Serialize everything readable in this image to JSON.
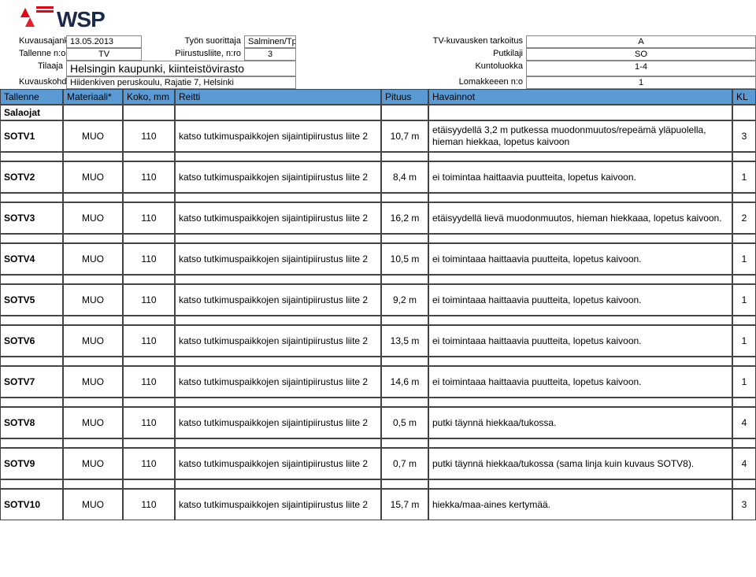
{
  "brand": {
    "name": "WSP",
    "logo_red": "#e30613",
    "logo_text_color": "#1a2a4a"
  },
  "meta": {
    "r1": {
      "l1": "Kuvausajank.",
      "v1": "13.05.2013",
      "l2": "Työn suorittaja",
      "v2": "Salminen/Tpa",
      "l3": "TV-kuvausken tarkoitus",
      "v3": "A"
    },
    "r2": {
      "l1": "Tallenne n:o",
      "v1": "TV",
      "l2": "Piirustusliite, n:ro",
      "v2": "3",
      "l3": "Putkilaji",
      "v3": "SO"
    },
    "r3": {
      "l1": "Tilaaja",
      "v1": "Helsingin kaupunki, kiinteistövirasto",
      "l3": "Kuntoluokka",
      "v3": "1-4"
    },
    "r4": {
      "l1": "Kuvauskohde",
      "v1": "Hiidenkiven peruskoulu, Rajatie 7, Helsinki",
      "l3": "Lomakkeeen n:o",
      "v3": "1"
    }
  },
  "columns": {
    "c1": "Tallenne",
    "c2": "Materiaali*",
    "c3": "Koko, mm",
    "c4": "Reitti",
    "c5": "Pituus",
    "c6": "Havainnot",
    "c7": "KL"
  },
  "subheader": "Salaojat",
  "reitti_text": "katso tutkimuspaikkojen sijaintipiirustus liite 2",
  "rows": [
    {
      "id": "SOTV1",
      "mat": "MUO",
      "size": "110",
      "pituus": "10,7 m",
      "hav": "etäisyydellä 3,2 m putkessa muodonmuutos/repeämä yläpuolella, hieman hiekkaa, lopetus kaivoon",
      "kl": "3"
    },
    {
      "id": "SOTV2",
      "mat": "MUO",
      "size": "110",
      "pituus": "8,4 m",
      "hav": "ei toimintaa haittaavia puutteita, lopetus kaivoon.",
      "kl": "1"
    },
    {
      "id": "SOTV3",
      "mat": "MUO",
      "size": "110",
      "pituus": "16,2 m",
      "hav": "etäisyydellä lievä muodonmuutos, hieman hiekkaaa, lopetus kaivoon.",
      "kl": "2"
    },
    {
      "id": "SOTV4",
      "mat": "MUO",
      "size": "110",
      "pituus": "10,5 m",
      "hav": "ei toimintaaa haittaavia puutteita, lopetus kaivoon.",
      "kl": "1"
    },
    {
      "id": "SOTV5",
      "mat": "MUO",
      "size": "110",
      "pituus": "9,2 m",
      "hav": "ei toimintaaa haittaavia puutteita, lopetus kaivoon.",
      "kl": "1"
    },
    {
      "id": "SOTV6",
      "mat": "MUO",
      "size": "110",
      "pituus": "13,5 m",
      "hav": "ei toimintaaa haittaavia puutteita, lopetus kaivoon.",
      "kl": "1"
    },
    {
      "id": "SOTV7",
      "mat": "MUO",
      "size": "110",
      "pituus": "14,6 m",
      "hav": "ei toimintaaa haittaavia puutteita, lopetus kaivoon.",
      "kl": "1"
    },
    {
      "id": "SOTV8",
      "mat": "MUO",
      "size": "110",
      "pituus": "0,5 m",
      "hav": "putki täynnä hiekkaa/tukossa.",
      "kl": "4"
    },
    {
      "id": "SOTV9",
      "mat": "MUO",
      "size": "110",
      "pituus": "0,7 m",
      "hav": "putki täynnä hiekkaa/tukossa (sama linja kuin kuvaus SOTV8).",
      "kl": "4"
    },
    {
      "id": "SOTV10",
      "mat": "MUO",
      "size": "110",
      "pituus": "15,7 m",
      "hav": "hiekka/maa-aines kertymää.",
      "kl": "3"
    }
  ],
  "colors": {
    "header_bg": "#5b9bd5",
    "border": "#444444"
  }
}
